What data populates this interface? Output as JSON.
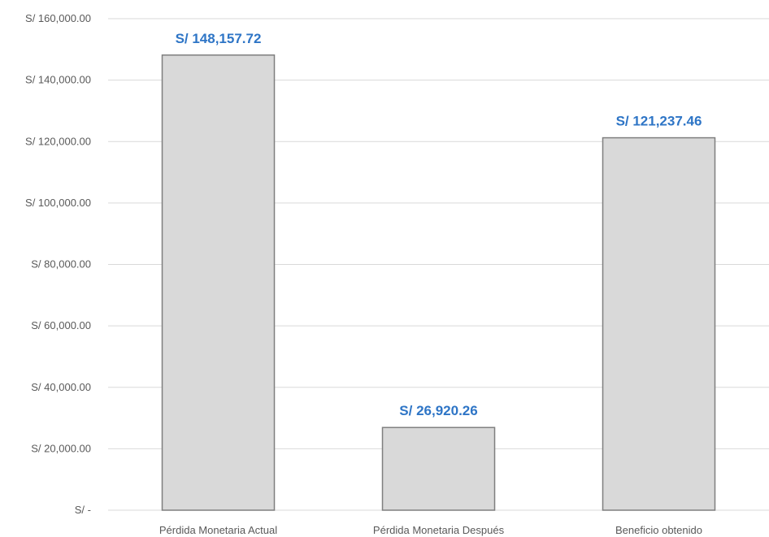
{
  "chart_data": {
    "type": "bar",
    "categories": [
      "Pérdida Monetaria Actual",
      "Pérdida Monetaria Después",
      "Beneficio obtenido"
    ],
    "values": [
      148157.72,
      26920.26,
      121237.46
    ],
    "data_labels": [
      "S/ 148,157.72",
      "S/ 26,920.26",
      "S/ 121,237.46"
    ],
    "y_ticks": [
      0,
      20000,
      40000,
      60000,
      80000,
      100000,
      120000,
      140000,
      160000
    ],
    "y_tick_labels": [
      "S/ -",
      "S/ 20,000.00",
      "S/ 40,000.00",
      "S/ 60,000.00",
      "S/ 80,000.00",
      "S/ 100,000.00",
      "S/ 120,000.00",
      "S/ 140,000.00",
      "S/ 160,000.00"
    ],
    "ylim": [
      0,
      160000
    ],
    "grid": true,
    "legend": "none",
    "colors": {
      "bar_fill": "#d9d9d9",
      "bar_stroke": "#7f7f7f",
      "grid": "#d9d9d9",
      "data_label": "#2e75c6",
      "tick_text": "#595959"
    }
  }
}
